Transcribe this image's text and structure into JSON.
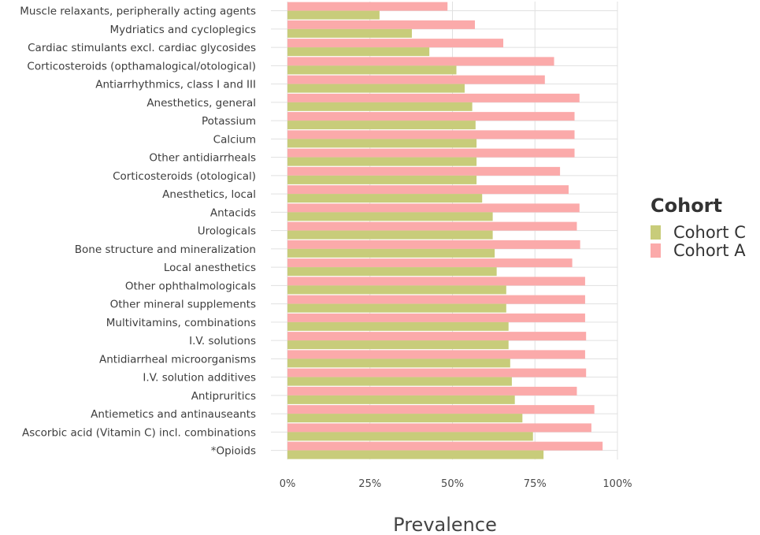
{
  "chart_data": {
    "type": "bar",
    "orientation": "horizontal",
    "categories": [
      "Muscle relaxants, peripherally acting agents",
      "Mydriatics and cycloplegics",
      "Cardiac stimulants excl. cardiac glycosides",
      "Corticosteroids (opthamalogical/otological)",
      "Antiarrhythmics, class I and III",
      "Anesthetics, general",
      "Potassium",
      "Calcium",
      "Other antidiarrheals",
      "Corticosteroids (otological)",
      "Anesthetics, local",
      "Antacids",
      "Urologicals",
      "Bone structure and mineralization",
      "Local anesthetics",
      "Other ophthalmologicals",
      "Other mineral supplements",
      "Multivitamins, combinations",
      "I.V. solutions",
      "Antidiarrheal microorganisms",
      "I.V. solution additives",
      "Antipruritics",
      "Antiemetics and antinauseants",
      "Ascorbic acid (Vitamin C) incl. combinations",
      "*Opioids"
    ],
    "series": [
      {
        "name": "Cohort A",
        "color": "#fbaaaa",
        "values": [
          0.485,
          0.568,
          0.654,
          0.808,
          0.78,
          0.885,
          0.87,
          0.87,
          0.87,
          0.826,
          0.852,
          0.885,
          0.877,
          0.887,
          0.863,
          0.902,
          0.902,
          0.902,
          0.905,
          0.902,
          0.905,
          0.877,
          0.93,
          0.921,
          0.955
        ]
      },
      {
        "name": "Cohort C",
        "color": "#c8cc7a",
        "values": [
          0.279,
          0.377,
          0.43,
          0.512,
          0.537,
          0.56,
          0.57,
          0.573,
          0.573,
          0.573,
          0.59,
          0.622,
          0.622,
          0.628,
          0.634,
          0.663,
          0.663,
          0.67,
          0.67,
          0.675,
          0.68,
          0.689,
          0.712,
          0.744,
          0.776
        ]
      }
    ],
    "xlabel": "Prevalence",
    "ylabel": "",
    "xlim": [
      0,
      1
    ],
    "xticks": [
      0,
      0.25,
      0.5,
      0.75,
      1
    ],
    "xtick_labels": [
      "0%",
      "25%",
      "50%",
      "75%",
      "100%"
    ],
    "grid": true,
    "legend": {
      "title": "Cohort",
      "position": "right",
      "order": [
        "Cohort C",
        "Cohort A"
      ]
    }
  }
}
